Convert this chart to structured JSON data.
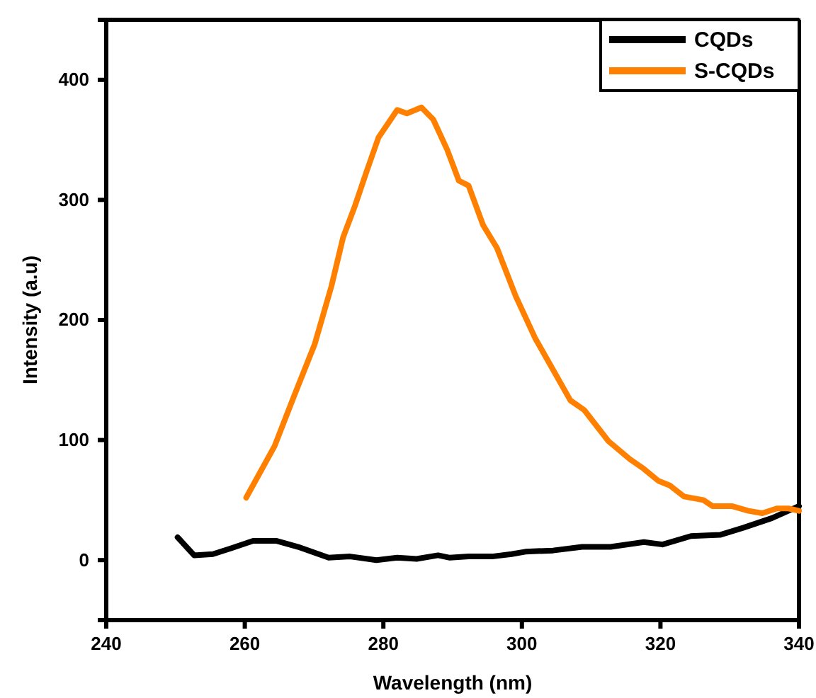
{
  "chart_data": {
    "type": "line",
    "xlabel": "Wavelength (nm)",
    "ylabel": "Intensity (a.u)",
    "xlim": [
      240,
      340
    ],
    "xticks": [
      240,
      260,
      280,
      300,
      320,
      340
    ],
    "ylim": [
      -50,
      450
    ],
    "yticks": [
      0,
      100,
      200,
      300,
      400
    ],
    "grid": false,
    "legend": "top right",
    "marker": "none",
    "line_style": "solid",
    "series": [
      {
        "name": "CQDs",
        "color": "#000000",
        "x": [
          250.3,
          252.7,
          255.4,
          258.1,
          261.2,
          264.6,
          267.7,
          272.1,
          275.2,
          279,
          282,
          284.8,
          287.9,
          289.6,
          292.3,
          295.7,
          298.5,
          300.5,
          304.5,
          308.7,
          312.8,
          317.6,
          320.3,
          324.4,
          328.6,
          332,
          336.1,
          340
        ],
        "values": [
          19,
          4,
          5,
          10,
          16,
          16,
          11,
          2,
          3,
          0,
          2,
          1,
          4,
          2,
          3,
          3,
          5,
          7,
          8,
          11,
          11,
          15,
          13,
          20,
          21,
          27,
          35,
          45
        ]
      },
      {
        "name": "S-CQDs",
        "color": "#ff8000",
        "x": [
          260.2,
          264.3,
          267,
          270.1,
          272.5,
          274.2,
          275.9,
          277.6,
          279.3,
          282,
          283.4,
          285.5,
          287.2,
          289.2,
          290.9,
          292.3,
          294.4,
          296.4,
          299.1,
          301.9,
          307,
          309,
          312.5,
          315.6,
          317.6,
          319.7,
          321.4,
          323.4,
          326.2,
          327.5,
          330.3,
          332.7,
          334.7,
          336.8,
          338.5,
          340
        ],
        "values": [
          52,
          95,
          135,
          180,
          228,
          269,
          295,
          324,
          352,
          375,
          372,
          377,
          367,
          342,
          316,
          312,
          279,
          260,
          220,
          185,
          133,
          125,
          99,
          84,
          76,
          66,
          62,
          53,
          50,
          45,
          45,
          41,
          39,
          43,
          43,
          41
        ]
      }
    ]
  }
}
